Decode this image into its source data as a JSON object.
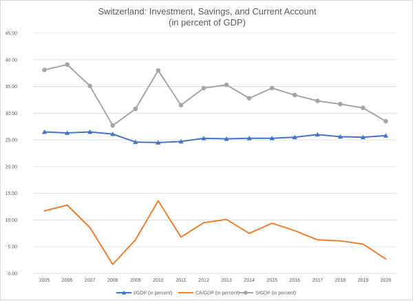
{
  "chart_data": {
    "type": "line",
    "title": "Switzerland: Investment, Savings, and Current Account",
    "subtitle": "(in percent of GDP)",
    "categories": [
      "2005",
      "2006",
      "2007",
      "2008",
      "2009",
      "2010",
      "2011",
      "2012",
      "2013",
      "2014",
      "2015",
      "2016",
      "2017",
      "2018",
      "2019",
      "2020"
    ],
    "ylim": [
      0,
      45
    ],
    "yticks": [
      "0.00",
      "5.00",
      "10.00",
      "15.00",
      "20.00",
      "25.00",
      "30.00",
      "35.00",
      "40.00",
      "45.00"
    ],
    "grid": true,
    "legend_position": "bottom",
    "series": [
      {
        "name": "I/GDP (in percent)",
        "color": "#4472c4",
        "marker": "triangle",
        "values": [
          26.5,
          26.3,
          26.5,
          26.1,
          24.6,
          24.5,
          24.7,
          25.3,
          25.2,
          25.3,
          25.3,
          25.5,
          26.0,
          25.6,
          25.5,
          25.8
        ]
      },
      {
        "name": "CA/GDP (in percent)",
        "color": "#ed7d31",
        "marker": "none",
        "values": [
          11.7,
          12.8,
          8.6,
          1.7,
          6.3,
          13.6,
          6.8,
          9.5,
          10.1,
          7.5,
          9.4,
          8.0,
          6.3,
          6.1,
          5.5,
          2.7
        ]
      },
      {
        "name": "S/GDP (in percent)",
        "color": "#a5a5a5",
        "marker": "circle",
        "values": [
          38.1,
          39.1,
          35.1,
          27.7,
          30.8,
          38.0,
          31.5,
          34.7,
          35.3,
          32.8,
          34.7,
          33.4,
          32.3,
          31.7,
          31.0,
          28.5
        ]
      }
    ]
  }
}
